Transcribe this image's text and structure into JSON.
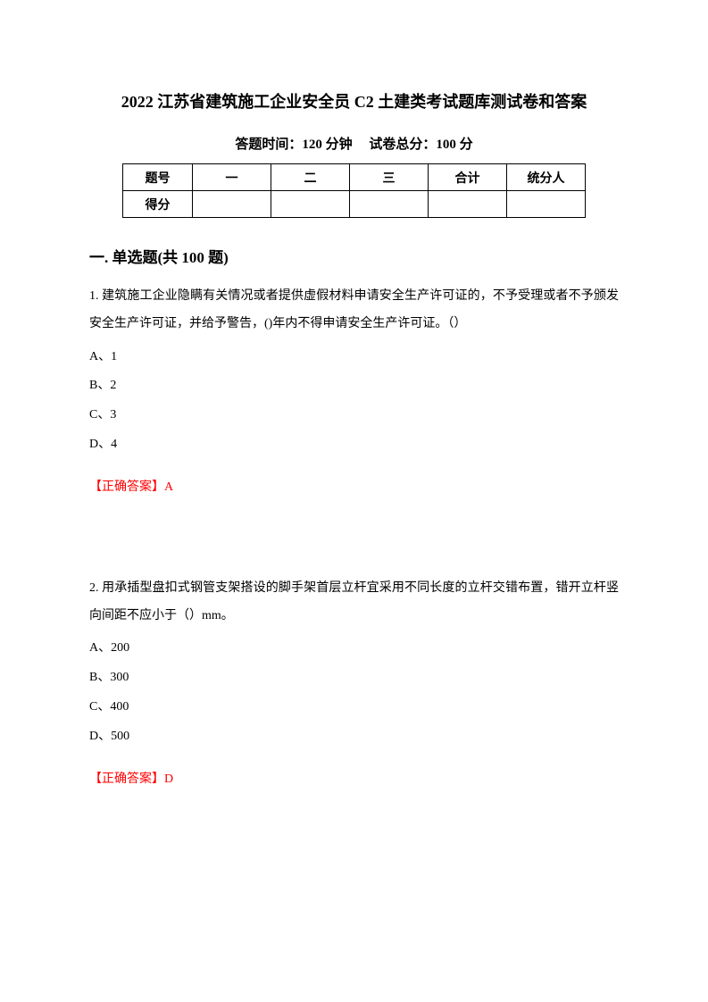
{
  "title": "2022 江苏省建筑施工企业安全员 C2 土建类考试题库测试卷和答案",
  "subtitle": "答题时间：120 分钟　 试卷总分：100 分",
  "table": {
    "row1": [
      "题号",
      "一",
      "二",
      "三",
      "合计",
      "统分人"
    ],
    "row2_label": "得分"
  },
  "section_heading": "一. 单选题(共 100 题)",
  "questions": [
    {
      "text": "1. 建筑施工企业隐瞒有关情况或者提供虚假材料申请安全生产许可证的，不予受理或者不予颁发安全生产许可证，并给予警告，()年内不得申请安全生产许可证。（）",
      "options": [
        "A、1",
        "B、2",
        "C、3",
        "D、4"
      ],
      "answer": "【正确答案】A"
    },
    {
      "text": "2. 用承插型盘扣式钢管支架搭设的脚手架首层立杆宜采用不同长度的立杆交错布置，错开立杆竖向间距不应小于（）mm。",
      "options": [
        "A、200",
        "B、300",
        "C、400",
        "D、500"
      ],
      "answer": "【正确答案】D"
    }
  ]
}
